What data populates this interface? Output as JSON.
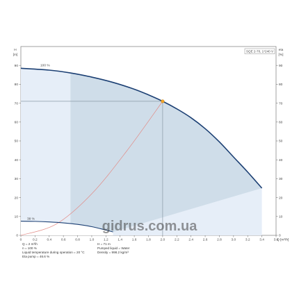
{
  "chart_data": {
    "type": "line",
    "y_left_label_top": "H",
    "y_left_label_unit": "[m]",
    "y_right_label_top": "eta",
    "y_right_label_unit": "[%]",
    "x_unit_label": "Q [m³/h]",
    "curve_label": "SQE 2-70, 1*240 V",
    "xlim": [
      0,
      3.6
    ],
    "ylim": [
      0,
      100
    ],
    "x_ticks": [
      "0",
      "0.2",
      "0.4",
      "0.6",
      "0.8",
      "1.0",
      "1.2",
      "1.4",
      "1.6",
      "1.8",
      "2.0",
      "2.2",
      "2.4",
      "2.6",
      "2.8",
      "3.0",
      "3.2",
      "3.4",
      "3.6"
    ],
    "y_ticks": [
      "0",
      "10",
      "20",
      "30",
      "40",
      "50",
      "60",
      "70",
      "80",
      "90"
    ],
    "series": [
      {
        "name": "100 %",
        "x": [
          0.0,
          0.4,
          0.7,
          1.0,
          1.3,
          1.6,
          1.8,
          2.0,
          2.2,
          2.4,
          2.6,
          2.8,
          3.0,
          3.2,
          3.4
        ],
        "y": [
          88.5,
          87.5,
          86.0,
          83.8,
          81.0,
          77.4,
          74.4,
          71.0,
          67.0,
          62.3,
          56.5,
          49.5,
          41.5,
          33.5,
          25.0
        ]
      },
      {
        "name": "38 %",
        "x": [
          0.0,
          0.2,
          0.4,
          0.6,
          0.8,
          1.0,
          1.2,
          1.3
        ],
        "y": [
          7.5,
          7.4,
          7.1,
          6.6,
          5.8,
          4.6,
          2.8,
          1.8
        ]
      }
    ],
    "system_curve": {
      "x": [
        0.0,
        0.5,
        1.0,
        1.5,
        2.0
      ],
      "y": [
        0,
        6,
        22,
        45,
        71
      ]
    },
    "operating_point": {
      "x": 2.0,
      "y": 71
    },
    "labels": {
      "full": "100 %",
      "reduced": "38 %"
    }
  },
  "info": {
    "left": [
      "Q = 2 m³/h",
      "n = 100 %",
      "Liquid temperature during operation = 20 °C",
      "Eta pump = 46.6 %"
    ],
    "right": [
      "H = 71 m",
      "Pumped liquid = Water",
      "Density = 998.2 kg/m³"
    ]
  },
  "watermark": "gidrus.com.ua",
  "colors": {
    "curve": "#1b3f73",
    "fill": "#cfdde9",
    "fill_light": "#e6eef8",
    "system": "#e28b86",
    "point": "#f2a628",
    "guide": "#8a9aa6"
  }
}
